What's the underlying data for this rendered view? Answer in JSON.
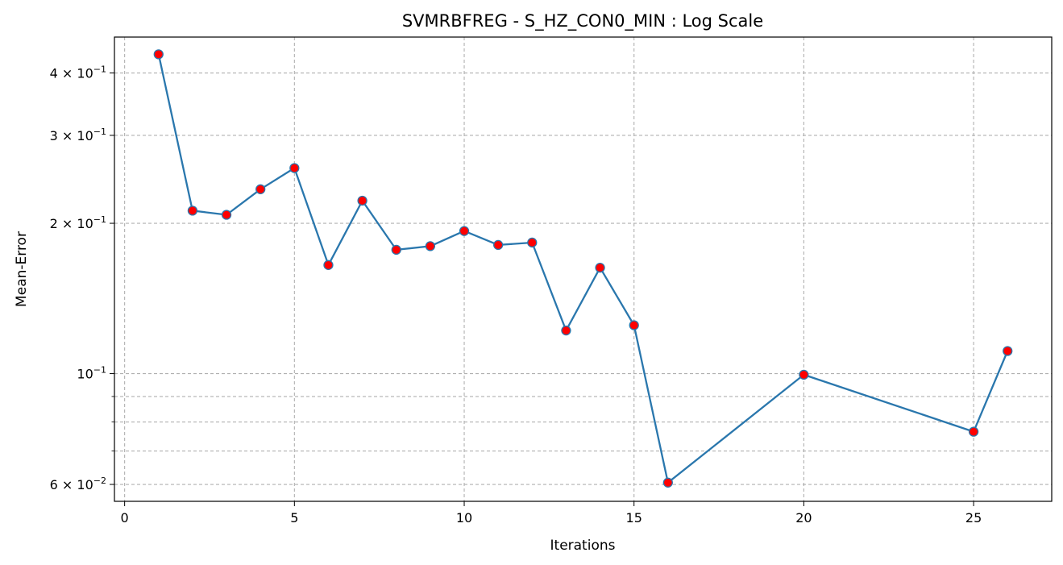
{
  "chart_data": {
    "type": "line",
    "title": "SVMRBFREG - S_HZ_CON0_MIN : Log Scale",
    "xlabel": "Iterations",
    "ylabel": "Mean-Error",
    "yscale": "log",
    "xlim": [
      -0.3,
      27.3
    ],
    "ylim": [
      0.0555,
      0.472
    ],
    "grid": true,
    "x_ticks": [
      0,
      5,
      10,
      15,
      20,
      25
    ],
    "y_major_ticks": [
      {
        "value": 0.06,
        "label_mant": "6",
        "label_exp": "−2"
      },
      {
        "value": 0.1,
        "label_mant": "10",
        "label_exp": "−1"
      },
      {
        "value": 0.2,
        "label_mant": "2",
        "label_exp": "−1"
      },
      {
        "value": 0.3,
        "label_mant": "3",
        "label_exp": "−1"
      },
      {
        "value": 0.4,
        "label_mant": "4",
        "label_exp": "−1"
      }
    ],
    "y_minor_ticks": [
      0.07,
      0.08,
      0.09
    ],
    "series": [
      {
        "line_color": "#2a77ad",
        "marker_color": "#ff0000",
        "x": [
          1,
          2,
          3,
          4,
          5,
          6,
          7,
          8,
          9,
          10,
          11,
          12,
          13,
          14,
          15,
          16,
          20,
          25,
          26
        ],
        "y": [
          0.436,
          0.212,
          0.208,
          0.234,
          0.258,
          0.165,
          0.222,
          0.177,
          0.18,
          0.193,
          0.181,
          0.183,
          0.122,
          0.163,
          0.125,
          0.0605,
          0.0995,
          0.0765,
          0.111
        ]
      }
    ]
  }
}
